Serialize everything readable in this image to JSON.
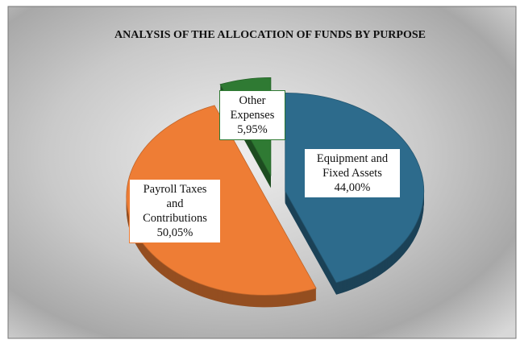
{
  "chart_data": {
    "type": "pie",
    "title": "ANALYSIS OF THE ALLOCATION OF FUNDS BY PURPOSE",
    "categories": [
      "Equipment and Fixed Assets",
      "Payroll Taxes and Contributions",
      "Other Expenses"
    ],
    "values": [
      44.0,
      50.05,
      5.95
    ],
    "value_labels": [
      "44,00%",
      "50,05%",
      "5,95%"
    ],
    "colors": [
      "#2d6b8c",
      "#ee7d35",
      "#2f7a33"
    ]
  }
}
